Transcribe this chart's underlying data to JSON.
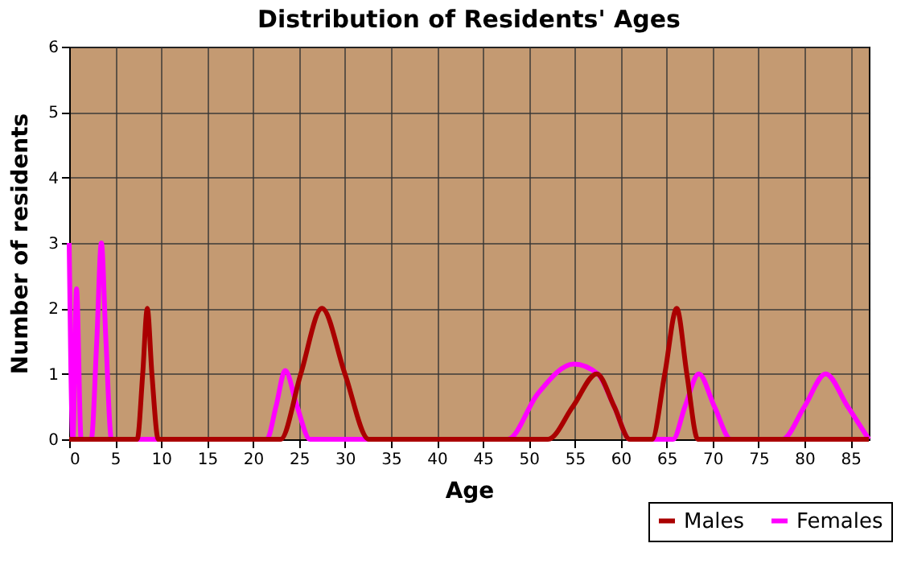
{
  "chart_data": {
    "type": "line",
    "title": "Distribution of Residents' Ages",
    "xlabel": "Age",
    "ylabel": "Number of residents",
    "xlim": [
      0,
      87
    ],
    "ylim": [
      0,
      6
    ],
    "xticks": [
      0,
      5,
      10,
      15,
      20,
      25,
      30,
      35,
      40,
      45,
      50,
      55,
      60,
      65,
      70,
      75,
      80,
      85
    ],
    "yticks": [
      0,
      1,
      2,
      3,
      4,
      5,
      6
    ],
    "grid": true,
    "legend": "bottom right",
    "marker": "none",
    "line_style": "solid",
    "series": [
      {
        "name": "Males",
        "color": "#aa0000",
        "x": [
          0,
          7.4,
          8.0,
          8.5,
          9.0,
          9.7,
          23.0,
          25.2,
          27.5,
          30.0,
          32.6,
          52.1,
          54.8,
          57.4,
          59.3,
          61.0,
          63.4,
          64.8,
          66.1,
          67.2,
          68.4,
          87
        ],
        "values": [
          0,
          0,
          1,
          2,
          1,
          0,
          0,
          1,
          2,
          1,
          0,
          0,
          0.5,
          1,
          0.5,
          0,
          0,
          1,
          2,
          1,
          0,
          0
        ]
      },
      {
        "name": "Females",
        "color": "#ff00ff",
        "x": [
          0,
          0.4,
          0.8,
          1.3,
          2.4,
          3.0,
          3.5,
          4.0,
          4.6,
          21.5,
          22.5,
          23.5,
          24.8,
          26.2,
          47.7,
          51.0,
          54.9,
          57.5,
          59.3,
          61.0,
          65.7,
          67.0,
          68.5,
          70.2,
          72.0,
          77.6,
          80.0,
          82.3,
          84.7,
          87
        ],
        "values": [
          3,
          0,
          2.3,
          0,
          0,
          1.5,
          3,
          1.5,
          0,
          0,
          0.5,
          1.05,
          0.5,
          0,
          0,
          0.7,
          1.15,
          1.0,
          0.5,
          0,
          0,
          0.5,
          1.0,
          0.5,
          0,
          0,
          0.5,
          1.0,
          0.5,
          0
        ]
      }
    ]
  }
}
